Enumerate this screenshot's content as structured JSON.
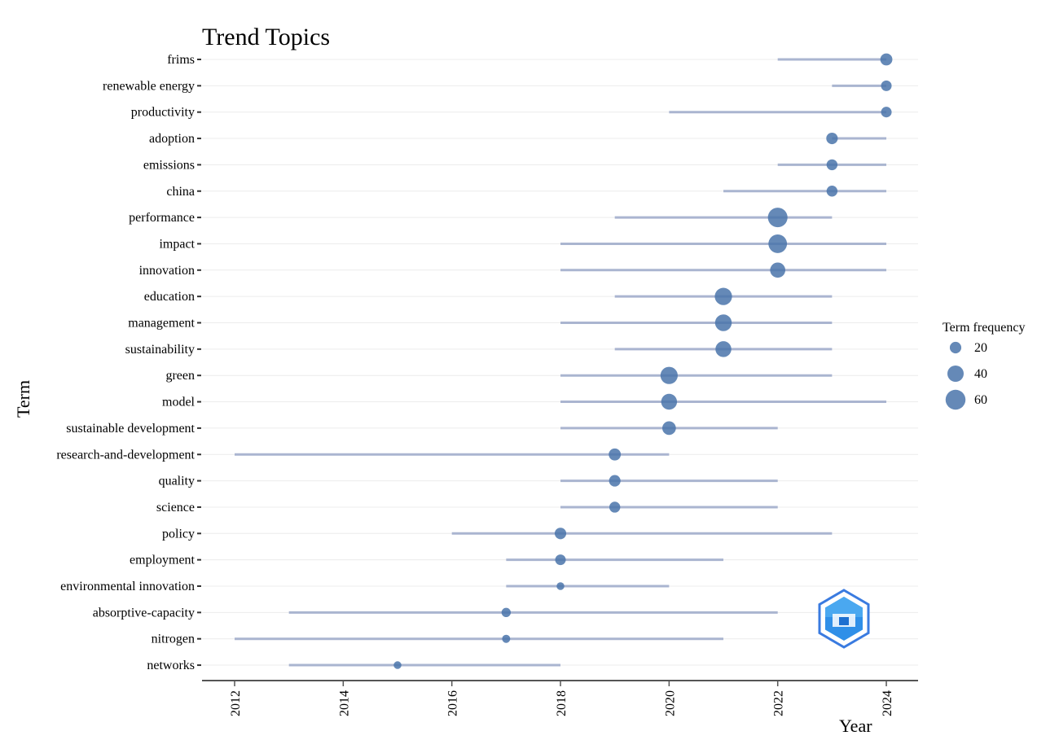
{
  "chart_data": {
    "type": "scatter",
    "title": "Trend Topics",
    "xlabel": "Year",
    "ylabel": "Term",
    "xlim": [
      2011.8,
      2024.6
    ],
    "xticks": [
      2012,
      2014,
      2016,
      2018,
      2020,
      2022,
      2024
    ],
    "grid": true,
    "legend": {
      "title": "Term frequency",
      "position": "right",
      "entries": [
        {
          "label": "20",
          "value": 20
        },
        {
          "label": "40",
          "value": 40
        },
        {
          "label": "60",
          "value": 60
        }
      ]
    },
    "point_color": "#4a74aa",
    "range_color": "#aab5d0",
    "terms": [
      {
        "term": "frims",
        "start": 2022,
        "median": 2024,
        "end": 2024,
        "frequency": 22
      },
      {
        "term": "renewable energy",
        "start": 2023,
        "median": 2024,
        "end": 2024,
        "frequency": 17
      },
      {
        "term": "productivity",
        "start": 2020,
        "median": 2024,
        "end": 2024,
        "frequency": 17
      },
      {
        "term": "adoption",
        "start": 2023,
        "median": 2023,
        "end": 2024,
        "frequency": 20
      },
      {
        "term": "emissions",
        "start": 2022,
        "median": 2023,
        "end": 2024,
        "frequency": 18
      },
      {
        "term": "china",
        "start": 2021,
        "median": 2023,
        "end": 2024,
        "frequency": 18
      },
      {
        "term": "performance",
        "start": 2019,
        "median": 2022,
        "end": 2023,
        "frequency": 58
      },
      {
        "term": "impact",
        "start": 2018,
        "median": 2022,
        "end": 2024,
        "frequency": 52
      },
      {
        "term": "innovation",
        "start": 2018,
        "median": 2022,
        "end": 2024,
        "frequency": 35
      },
      {
        "term": "education",
        "start": 2019,
        "median": 2021,
        "end": 2023,
        "frequency": 45
      },
      {
        "term": "management",
        "start": 2018,
        "median": 2021,
        "end": 2023,
        "frequency": 42
      },
      {
        "term": "sustainability",
        "start": 2019,
        "median": 2021,
        "end": 2023,
        "frequency": 38
      },
      {
        "term": "green",
        "start": 2018,
        "median": 2020,
        "end": 2023,
        "frequency": 45
      },
      {
        "term": "model",
        "start": 2018,
        "median": 2020,
        "end": 2024,
        "frequency": 38
      },
      {
        "term": "sustainable development",
        "start": 2018,
        "median": 2020,
        "end": 2022,
        "frequency": 28
      },
      {
        "term": "research-and-development",
        "start": 2012,
        "median": 2019,
        "end": 2020,
        "frequency": 22
      },
      {
        "term": "quality",
        "start": 2018,
        "median": 2019,
        "end": 2022,
        "frequency": 20
      },
      {
        "term": "science",
        "start": 2018,
        "median": 2019,
        "end": 2022,
        "frequency": 18
      },
      {
        "term": "policy",
        "start": 2016,
        "median": 2018,
        "end": 2023,
        "frequency": 20
      },
      {
        "term": "employment",
        "start": 2017,
        "median": 2018,
        "end": 2021,
        "frequency": 17
      },
      {
        "term": "environmental innovation",
        "start": 2017,
        "median": 2018,
        "end": 2020,
        "frequency": 9
      },
      {
        "term": "absorptive-capacity",
        "start": 2013,
        "median": 2017,
        "end": 2022,
        "frequency": 13
      },
      {
        "term": "nitrogen",
        "start": 2012,
        "median": 2017,
        "end": 2021,
        "frequency": 10
      },
      {
        "term": "networks",
        "start": 2013,
        "median": 2015,
        "end": 2018,
        "frequency": 9
      }
    ]
  }
}
